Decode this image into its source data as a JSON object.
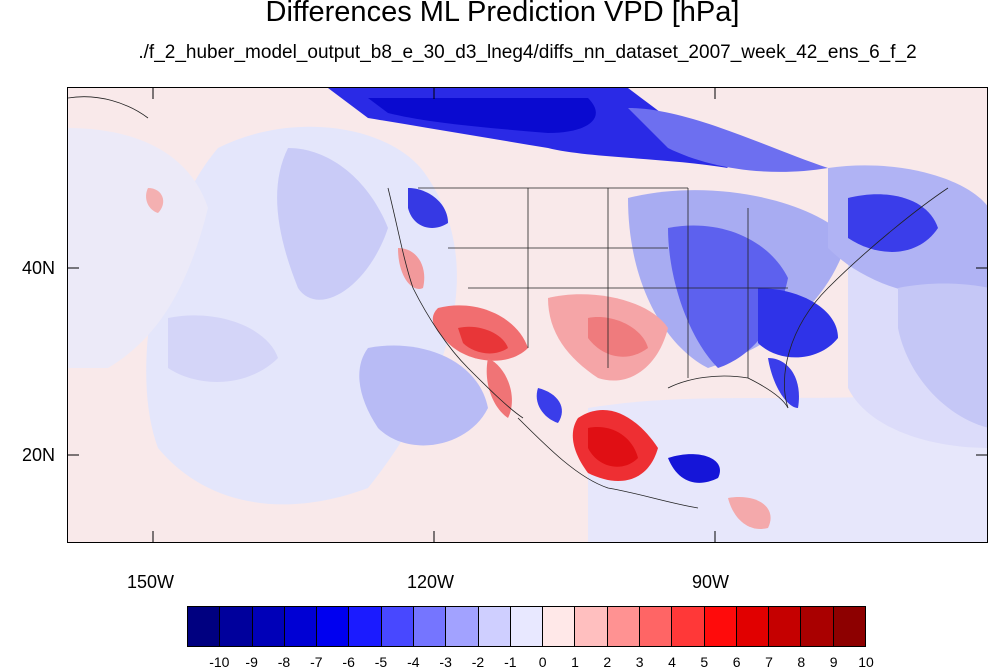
{
  "title": "Differences ML Prediction VPD [hPa]",
  "subtitle": "./f_2_huber_model_output_b8_e_30_d3_lneg4/diffs_nn_dataset_2007_week_42_ens_6_f_2",
  "axes": {
    "lon_labels": [
      "150W",
      "120W",
      "90W"
    ],
    "lat_labels": [
      "40N",
      "20N"
    ]
  },
  "colorbar": {
    "labels": [
      "-10",
      "-9",
      "-8",
      "-7",
      "-6",
      "-5",
      "-4",
      "-3",
      "-2",
      "-1",
      "0",
      "1",
      "2",
      "3",
      "4",
      "5",
      "6",
      "7",
      "8",
      "9",
      "10"
    ],
    "colors": [
      "#000080",
      "#00009c",
      "#0000b8",
      "#0000d4",
      "#0000f0",
      "#1b1bff",
      "#4848ff",
      "#7575ff",
      "#a2a2ff",
      "#cfcfff",
      "#e8e8ff",
      "#ffe8e8",
      "#ffbfbf",
      "#ff9292",
      "#ff6565",
      "#ff3838",
      "#ff0b0b",
      "#e10000",
      "#c50000",
      "#a90000",
      "#8d0000"
    ]
  }
}
